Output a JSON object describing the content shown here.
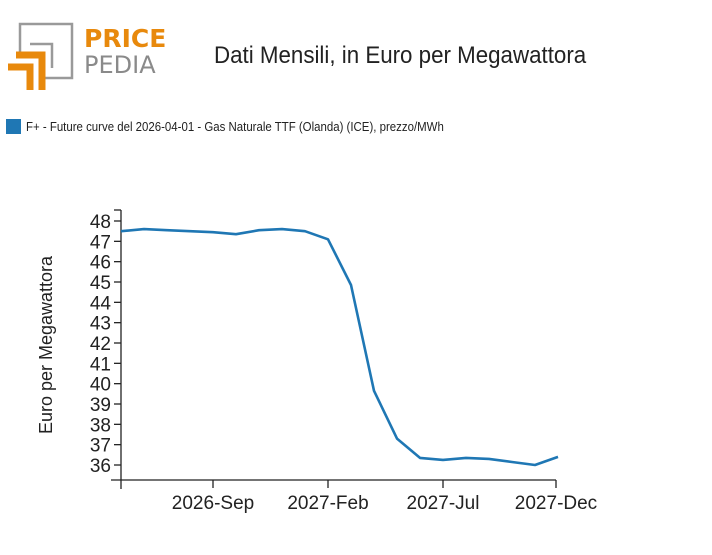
{
  "logo": {
    "line1": "PRICE",
    "line2": "PEDIA",
    "accent_color": "#e8890c",
    "grey_color": "#8a8a8a"
  },
  "title": "Dati Mensili, in Euro per Megawattora",
  "legend": {
    "label": "F+ - Future curve del 2026-04-01 - Gas Naturale TTF (Olanda) (ICE), prezzo/MWh",
    "color": "#1f77b4"
  },
  "chart_data": {
    "type": "line",
    "title": "Dati Mensili, in Euro per Megawattora",
    "xlabel": "",
    "ylabel": "Euro per Megawattora",
    "ylim": [
      35.2,
      48.6
    ],
    "yticks": [
      36,
      37,
      38,
      39,
      40,
      41,
      42,
      43,
      44,
      45,
      46,
      47,
      48
    ],
    "xlim": [
      "2026-May",
      "2027-Dec"
    ],
    "xticks": [
      {
        "label": "2026-Sep",
        "index": 4
      },
      {
        "label": "2027-Feb",
        "index": 9
      },
      {
        "label": "2027-Jul",
        "index": 14
      },
      {
        "label": "2027-Dec",
        "index": 19
      }
    ],
    "grid": false,
    "legend_position": "top-left",
    "x": [
      "2026-May",
      "2026-Jun",
      "2026-Jul",
      "2026-Aug",
      "2026-Sep",
      "2026-Oct",
      "2026-Nov",
      "2026-Dec",
      "2027-Jan",
      "2027-Feb",
      "2027-Mar",
      "2027-Apr",
      "2027-May",
      "2027-Jun",
      "2027-Jul",
      "2027-Aug",
      "2027-Sep",
      "2027-Oct",
      "2027-Nov",
      "2027-Dec"
    ],
    "series": [
      {
        "name": "F+ - Future curve del 2026-04-01 - Gas Naturale TTF (Olanda) (ICE), prezzo/MWh",
        "color": "#1f77b4",
        "values": [
          47.5,
          47.6,
          47.55,
          47.5,
          47.45,
          47.35,
          47.55,
          47.6,
          47.5,
          47.1,
          44.85,
          39.65,
          37.3,
          36.35,
          36.25,
          36.35,
          36.3,
          36.15,
          36.0,
          36.4
        ]
      }
    ]
  }
}
